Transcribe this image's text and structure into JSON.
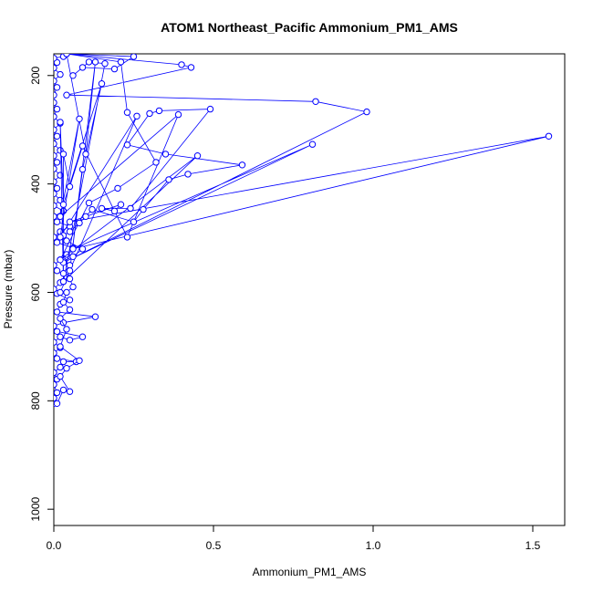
{
  "chart_data": {
    "type": "line",
    "title": "ATOM1 Northeast_Pacific Ammonium_PM1_AMS",
    "xlabel": "Ammonium_PM1_AMS",
    "ylabel": "Pressure (mbar)",
    "xlim": [
      0,
      1.6
    ],
    "ylim": [
      1030,
      160
    ],
    "y_reversed": true,
    "grid": false,
    "legend": "none",
    "x_ticks": [
      0.0,
      0.5,
      1.0,
      1.5
    ],
    "x_tick_labels": [
      "0.0",
      "0.5",
      "1.0",
      "1.5"
    ],
    "y_ticks": [
      200,
      400,
      600,
      800,
      1000
    ],
    "y_tick_labels": [
      "200",
      "400",
      "600",
      "800",
      "1000"
    ],
    "series_color": "#0000ff",
    "series": [
      {
        "points": [
          [
            0.0,
            805
          ],
          [
            0.0,
            795
          ],
          [
            0.01,
            785
          ],
          [
            0.0,
            770
          ],
          [
            0.01,
            760
          ],
          [
            0.0,
            748
          ],
          [
            0.02,
            738
          ],
          [
            0.03,
            728
          ],
          [
            0.07,
            728
          ],
          [
            0.01,
            722
          ],
          [
            0.0,
            712
          ],
          [
            0.02,
            702
          ],
          [
            0.0,
            692
          ],
          [
            0.02,
            682
          ],
          [
            0.05,
            688
          ],
          [
            0.09,
            682
          ],
          [
            0.01,
            672
          ],
          [
            0.0,
            662
          ],
          [
            0.03,
            656
          ],
          [
            0.13,
            645
          ],
          [
            0.01,
            636
          ],
          [
            0.02,
            622
          ],
          [
            0.05,
            614
          ],
          [
            0.01,
            602
          ],
          [
            0.0,
            594
          ],
          [
            0.02,
            582
          ],
          [
            0.04,
            572
          ],
          [
            0.01,
            560
          ],
          [
            0.0,
            550
          ],
          [
            0.02,
            540
          ],
          [
            0.04,
            530
          ],
          [
            0.06,
            518
          ],
          [
            0.01,
            508
          ],
          [
            0.0,
            498
          ],
          [
            0.02,
            488
          ],
          [
            0.05,
            478
          ],
          [
            0.01,
            470
          ],
          [
            0.0,
            460
          ],
          [
            0.03,
            450
          ],
          [
            0.0,
            440
          ],
          [
            0.02,
            430
          ],
          [
            0.0,
            418
          ],
          [
            0.01,
            408
          ],
          [
            0.0,
            396
          ],
          [
            0.02,
            384
          ],
          [
            0.0,
            372
          ],
          [
            0.01,
            360
          ],
          [
            0.0,
            348
          ],
          [
            0.02,
            338
          ],
          [
            0.0,
            326
          ],
          [
            0.01,
            312
          ],
          [
            0.0,
            300
          ],
          [
            0.02,
            288
          ],
          [
            0.0,
            276
          ],
          [
            0.01,
            262
          ],
          [
            0.0,
            250
          ],
          [
            0.0,
            236
          ],
          [
            0.01,
            222
          ],
          [
            0.0,
            210
          ],
          [
            0.02,
            198
          ],
          [
            0.0,
            186
          ],
          [
            0.01,
            176
          ],
          [
            0.0,
            168
          ],
          [
            0.03,
            165
          ]
        ]
      },
      {
        "points": [
          [
            0.01,
            805
          ],
          [
            0.03,
            780
          ],
          [
            0.05,
            783
          ],
          [
            0.02,
            755
          ],
          [
            0.04,
            740
          ],
          [
            0.08,
            726
          ],
          [
            0.02,
            700
          ],
          [
            0.04,
            668
          ],
          [
            0.02,
            648
          ],
          [
            0.05,
            632
          ],
          [
            0.03,
            618
          ],
          [
            0.04,
            600
          ],
          [
            0.06,
            590
          ],
          [
            0.05,
            575
          ],
          [
            0.03,
            565
          ],
          [
            0.05,
            550
          ],
          [
            0.03,
            542
          ],
          [
            0.06,
            534
          ],
          [
            0.09,
            520
          ],
          [
            0.04,
            505
          ],
          [
            0.03,
            495
          ],
          [
            0.05,
            488
          ],
          [
            0.08,
            472
          ],
          [
            0.1,
            460
          ],
          [
            0.12,
            447
          ],
          [
            0.25,
            470
          ],
          [
            0.28,
            447
          ],
          [
            0.36,
            392
          ],
          [
            0.42,
            382
          ],
          [
            0.59,
            365
          ],
          [
            0.35,
            345
          ],
          [
            0.23,
            328
          ],
          [
            0.3,
            270
          ],
          [
            0.33,
            265
          ],
          [
            0.49,
            262
          ],
          [
            0.24,
            445
          ],
          [
            0.15,
            445
          ],
          [
            0.19,
            450
          ],
          [
            0.21,
            438
          ],
          [
            0.05,
            470
          ],
          [
            1.55,
            312
          ],
          [
            0.06,
            520
          ],
          [
            0.81,
            327
          ],
          [
            0.03,
            545
          ],
          [
            0.98,
            267
          ],
          [
            0.82,
            248
          ],
          [
            0.04,
            236
          ],
          [
            0.43,
            185
          ],
          [
            0.4,
            180
          ],
          [
            0.04,
            160
          ],
          [
            0.21,
            175
          ],
          [
            0.23,
            268
          ],
          [
            0.32,
            360
          ],
          [
            0.2,
            408
          ],
          [
            0.11,
            435
          ],
          [
            0.02,
            540
          ],
          [
            0.45,
            348
          ],
          [
            0.03,
            580
          ],
          [
            0.16,
            178
          ],
          [
            0.11,
            175
          ],
          [
            0.06,
            200
          ],
          [
            0.09,
            185
          ],
          [
            0.19,
            188
          ],
          [
            0.25,
            165
          ],
          [
            0.04,
            160
          ],
          [
            0.1,
            345
          ],
          [
            0.13,
            175
          ],
          [
            0.05,
            560
          ],
          [
            0.09,
            373
          ],
          [
            0.15,
            215
          ],
          [
            0.03,
            438
          ],
          [
            0.02,
            286
          ],
          [
            0.03,
            580
          ],
          [
            0.03,
            345
          ],
          [
            0.05,
            405
          ],
          [
            0.09,
            330
          ],
          [
            0.23,
            498
          ],
          [
            0.39,
            272
          ],
          [
            0.02,
            460
          ],
          [
            0.08,
            280
          ],
          [
            0.02,
            498
          ],
          [
            0.26,
            275
          ],
          [
            0.02,
            600
          ]
        ]
      }
    ]
  }
}
